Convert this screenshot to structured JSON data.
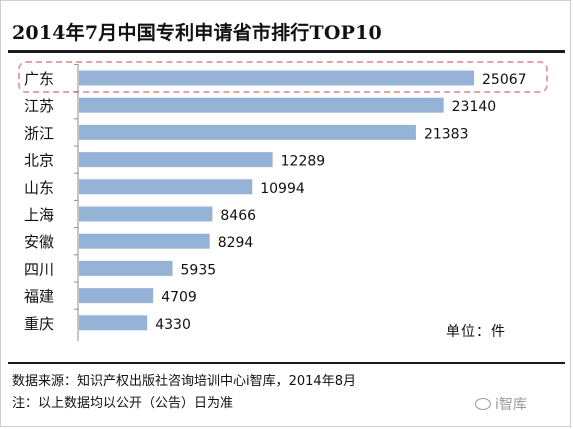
{
  "chart_data": {
    "type": "bar",
    "orientation": "horizontal",
    "title": "2014年7月中国专利申请省市排行TOP10",
    "categories": [
      "广东",
      "江苏",
      "浙江",
      "北京",
      "山东",
      "上海",
      "安徽",
      "四川",
      "福建",
      "重庆"
    ],
    "values": [
      25067,
      23140,
      21383,
      12289,
      10994,
      8466,
      8294,
      5935,
      4709,
      4330
    ],
    "unit": "单位：件",
    "bar_color": "#95b3d7",
    "highlight_color": "#e3a4a4",
    "xlim": [
      0,
      26000
    ],
    "grid": false,
    "legend": "none"
  },
  "footer": {
    "source": "数据来源：知识产权出版社咨询培训中心i智库，2014年8月",
    "note": "注：以上数据均以公开（公告）日为准"
  },
  "watermark": {
    "text": "i智库",
    "icon": "wechat-icon"
  }
}
